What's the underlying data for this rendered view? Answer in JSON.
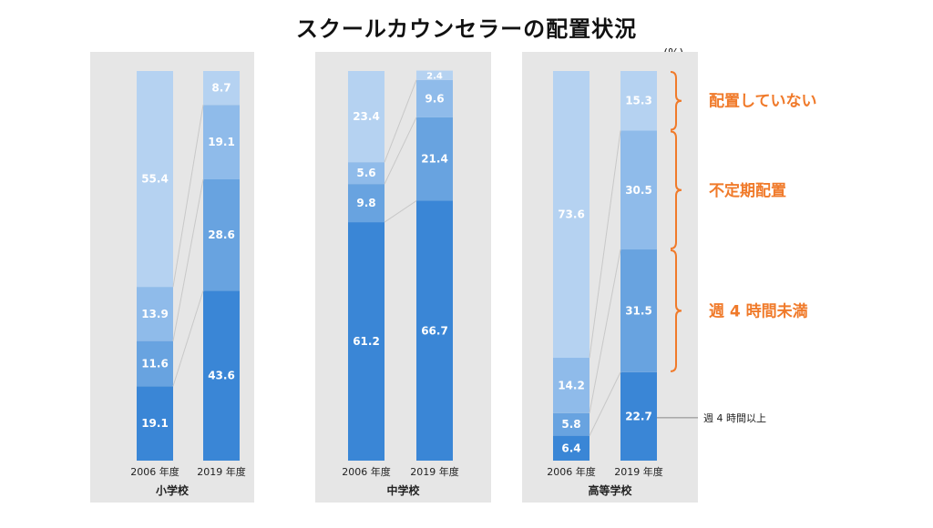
{
  "title": "スクールカウンセラーの配置状況",
  "unit": "(%)",
  "colors": {
    "background_panel": "#e6e6e6",
    "weekly_4h_plus": "#3a86d6",
    "weekly_under_4h": "#68a3e0",
    "irregular": "#8fbbea",
    "not_placed": "#b5d2f1",
    "category_label": "#f07a2a",
    "connector": "#c8c8c8"
  },
  "legend": {
    "not_placed": "配置していない",
    "irregular": "不定期配置",
    "weekly_under_4h": "週 4 時間未満",
    "weekly_4h_plus": "週 4 時間以上"
  },
  "chart_data": [
    {
      "type": "bar",
      "stacked": true,
      "school": "小学校",
      "categories": [
        "2006 年度",
        "2019 年度"
      ],
      "ylim": [
        0,
        100
      ],
      "series": [
        {
          "key": "weekly_4h_plus",
          "values": [
            19.1,
            43.6
          ]
        },
        {
          "key": "weekly_under_4h",
          "values": [
            11.6,
            28.6
          ]
        },
        {
          "key": "irregular",
          "values": [
            13.9,
            19.1
          ]
        },
        {
          "key": "not_placed",
          "values": [
            55.4,
            8.7
          ]
        }
      ]
    },
    {
      "type": "bar",
      "stacked": true,
      "school": "中学校",
      "categories": [
        "2006 年度",
        "2019 年度"
      ],
      "ylim": [
        0,
        100
      ],
      "series": [
        {
          "key": "weekly_4h_plus",
          "values": [
            61.2,
            66.7
          ]
        },
        {
          "key": "weekly_under_4h",
          "values": [
            9.8,
            21.4
          ]
        },
        {
          "key": "irregular",
          "values": [
            5.6,
            9.6
          ]
        },
        {
          "key": "not_placed",
          "values": [
            23.4,
            2.4
          ]
        }
      ]
    },
    {
      "type": "bar",
      "stacked": true,
      "school": "高等学校",
      "categories": [
        "2006 年度",
        "2019 年度"
      ],
      "ylim": [
        0,
        100
      ],
      "series": [
        {
          "key": "weekly_4h_plus",
          "values": [
            6.4,
            22.7
          ]
        },
        {
          "key": "weekly_under_4h",
          "values": [
            5.8,
            31.5
          ]
        },
        {
          "key": "irregular",
          "values": [
            14.2,
            30.5
          ]
        },
        {
          "key": "not_placed",
          "values": [
            73.6,
            15.3
          ]
        }
      ]
    }
  ]
}
